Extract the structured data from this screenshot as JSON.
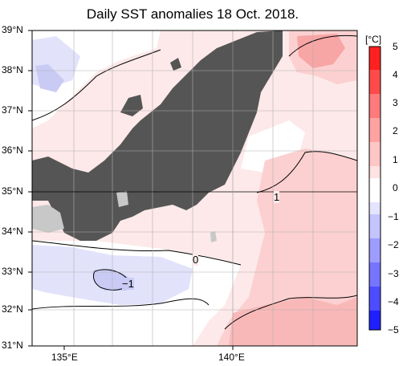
{
  "title": "Daily SST anomalies 18 Oct. 2018.",
  "lat_labels": [
    "39°N",
    "38°N",
    "37°N",
    "36°N",
    "35°N",
    "34°N",
    "33°N",
    "32°N",
    "31°N"
  ],
  "lon_labels": [
    "135°E",
    "140°E"
  ],
  "colorbar": {
    "unit": "[°C]",
    "ticks": [
      "5",
      "4",
      "3",
      "2",
      "1",
      "0",
      "−1",
      "−2",
      "−3",
      "−4",
      "−5"
    ],
    "colors": [
      "#ff2020",
      "#ff4a4a",
      "#ff7070",
      "#ff9a9a",
      "#ffc4c4",
      "#ffe4e4",
      "#ffffff",
      "#e4e4ff",
      "#c4c4ff",
      "#9a9aff",
      "#7070ff",
      "#4a4aff",
      "#2020ff"
    ]
  },
  "contour_labels": [
    "1",
    "0",
    "−1"
  ],
  "colors": {
    "land": "#555555",
    "land_small": "#c8c8c8",
    "warm_light": "#fde2e2",
    "warm_mid": "#fbc6c6",
    "warm_strong": "#f79a9a",
    "cool_light": "#dfe0fb",
    "cool_mid": "#c7c9f5"
  }
}
